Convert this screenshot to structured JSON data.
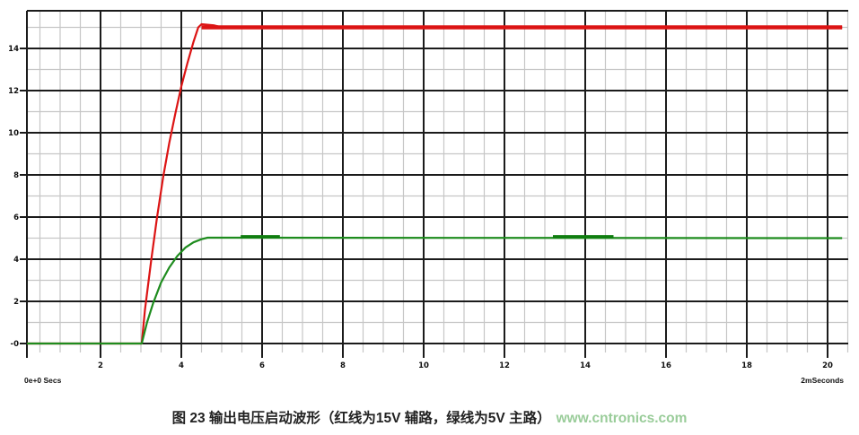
{
  "footer": {
    "caption": "图 23 输出电压启动波形（红线为15V 辅路，绿线为5V 主路）",
    "watermark": "www.cntronics.com",
    "watermark_color": "#99cc99"
  },
  "chart_data": {
    "type": "line",
    "title": "输出电压启动波形 (output voltage startup waveform)",
    "x_unit_left_label": "0e+0 Secs",
    "x_unit_right_label": "2mSeconds",
    "x_tick_values": [
      2,
      4,
      6,
      8,
      10,
      12,
      14,
      16,
      18,
      20
    ],
    "x_tick_labels": [
      "2",
      "4",
      "6",
      "8",
      "10",
      "12",
      "14",
      "16",
      "18",
      "20"
    ],
    "y_tick_values": [
      14,
      12,
      10,
      8,
      6,
      4,
      2,
      0
    ],
    "y_tick_labels": [
      "14",
      "12",
      "10",
      "8",
      "6",
      "4",
      "2",
      "-0"
    ],
    "xlim": [
      0.18,
      20.5
    ],
    "ylim": [
      0,
      15.8
    ],
    "grid": {
      "major_x_step": 2,
      "minor_x_step": 0.5,
      "major_y_step": 2,
      "minor_y_step": 1,
      "major_color": "#1b1b1b",
      "minor_color": "#c6c6c6"
    },
    "series": [
      {
        "name": "15V 辅路 (red)",
        "color": "#dc1414",
        "final_value": 15,
        "points": [
          [
            0.18,
            0
          ],
          [
            3.02,
            0
          ],
          [
            3.1,
            1.6
          ],
          [
            3.25,
            3.9
          ],
          [
            3.4,
            6.0
          ],
          [
            3.55,
            7.9
          ],
          [
            3.7,
            9.5
          ],
          [
            3.85,
            10.9
          ],
          [
            4.0,
            12.2
          ],
          [
            4.15,
            13.3
          ],
          [
            4.3,
            14.3
          ],
          [
            4.42,
            15.0
          ],
          [
            4.5,
            15.15
          ],
          [
            4.8,
            15.1
          ],
          [
            5.0,
            15.0
          ],
          [
            20.36,
            15.0
          ]
        ]
      },
      {
        "name": "5V 主路 (green)",
        "color": "#1e8c1e",
        "final_value": 5,
        "points": [
          [
            0.18,
            0
          ],
          [
            3.02,
            0
          ],
          [
            3.15,
            1.0
          ],
          [
            3.3,
            1.9
          ],
          [
            3.5,
            2.9
          ],
          [
            3.7,
            3.6
          ],
          [
            3.9,
            4.15
          ],
          [
            4.1,
            4.55
          ],
          [
            4.3,
            4.8
          ],
          [
            4.5,
            4.95
          ],
          [
            4.65,
            5.02
          ],
          [
            20.36,
            5.0
          ]
        ]
      }
    ],
    "highlight_segments": [
      {
        "series": "15V 辅路 (red)",
        "color": "#dc1414",
        "value": 15.0,
        "t_start": 4.5,
        "t_end": 20.36,
        "width": 4.5
      },
      {
        "series": "5V 主路 (green)",
        "color": "#0f7d0f",
        "value": 5.07,
        "t_start": 5.47,
        "t_end": 6.44,
        "width": 3.5
      },
      {
        "series": "5V 主路 (green)",
        "color": "#0f7d0f",
        "value": 5.07,
        "t_start": 13.2,
        "t_end": 14.7,
        "width": 3.5
      }
    ]
  }
}
